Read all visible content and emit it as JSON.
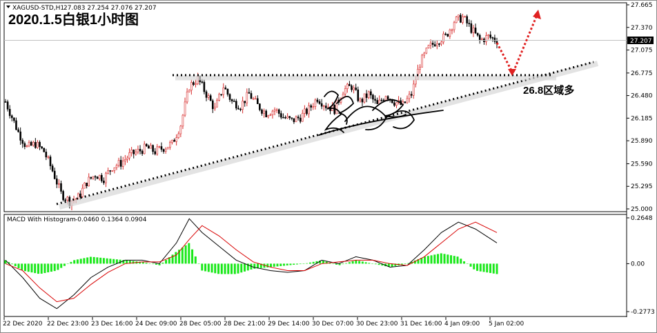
{
  "header": {
    "symbol": "XAGUSD-STD,H1",
    "ohlc": "27.083 27.254 27.076 27.207",
    "title": "2020.1.5白银1小时图"
  },
  "macd_header": {
    "label": "MACD With Histogram",
    "values": "-0.0460 0.1364 0.0904"
  },
  "annotation": "26.8区域多",
  "chart_data": {
    "type": "candlestick",
    "title": "2020.1.5白银1小时图",
    "symbol": "XAGUSD-STD,H1",
    "price_axis": {
      "ticks": [
        "27.665",
        "27.370",
        "27.075",
        "26.775",
        "26.480",
        "26.185",
        "25.890",
        "25.590",
        "25.295",
        "25.000"
      ],
      "range": [
        25.0,
        27.665
      ],
      "current_price": "27.207"
    },
    "macd_axis": {
      "ticks": [
        "0.2648",
        "0.00",
        "-0.2773"
      ],
      "range": [
        -0.2773,
        0.2648
      ]
    },
    "x_ticks": [
      "22 Dec 2020",
      "22 Dec 23:00",
      "23 Dec 16:00",
      "24 Dec 09:00",
      "28 Dec 05:00",
      "28 Dec 21:00",
      "29 Dec 14:00",
      "30 Dec 07:00",
      "30 Dec 23:00",
      "31 Dec 16:00",
      "4 Jan 09:00",
      "5 Jan 02:00"
    ],
    "price_path": [
      [
        0,
        26.4
      ],
      [
        3,
        26.0
      ],
      [
        5,
        25.8
      ],
      [
        7,
        25.85
      ],
      [
        9,
        25.75
      ],
      [
        11,
        25.5
      ],
      [
        13,
        25.2
      ],
      [
        15,
        25.1
      ],
      [
        17,
        25.15
      ],
      [
        19,
        25.35
      ],
      [
        21,
        25.45
      ],
      [
        23,
        25.4
      ],
      [
        25,
        25.55
      ],
      [
        27,
        25.6
      ],
      [
        29,
        25.7
      ],
      [
        31,
        25.75
      ],
      [
        33,
        25.8
      ],
      [
        35,
        25.75
      ],
      [
        37,
        25.8
      ],
      [
        39,
        25.85
      ],
      [
        41,
        26.1
      ],
      [
        43,
        26.6
      ],
      [
        45,
        26.7
      ],
      [
        47,
        26.5
      ],
      [
        49,
        26.3
      ],
      [
        51,
        26.6
      ],
      [
        53,
        26.4
      ],
      [
        55,
        26.35
      ],
      [
        57,
        26.5
      ],
      [
        59,
        26.35
      ],
      [
        61,
        26.25
      ],
      [
        63,
        26.3
      ],
      [
        65,
        26.2
      ],
      [
        67,
        26.15
      ],
      [
        69,
        26.2
      ],
      [
        71,
        26.3
      ],
      [
        73,
        26.45
      ],
      [
        75,
        26.35
      ],
      [
        77,
        26.3
      ],
      [
        79,
        26.55
      ],
      [
        81,
        26.6
      ],
      [
        83,
        26.4
      ],
      [
        85,
        26.5
      ],
      [
        87,
        26.35
      ],
      [
        89,
        26.5
      ],
      [
        91,
        26.4
      ],
      [
        93,
        26.35
      ],
      [
        95,
        26.5
      ],
      [
        97,
        26.9
      ],
      [
        99,
        27.1
      ],
      [
        101,
        27.2
      ],
      [
        103,
        27.25
      ],
      [
        105,
        27.45
      ],
      [
        107,
        27.5
      ],
      [
        109,
        27.35
      ],
      [
        111,
        27.2
      ],
      [
        113,
        27.25
      ],
      [
        115,
        27.2
      ]
    ],
    "macd_line": [
      [
        0,
        0.02
      ],
      [
        4,
        -0.08
      ],
      [
        8,
        -0.2
      ],
      [
        12,
        -0.26
      ],
      [
        16,
        -0.18
      ],
      [
        20,
        -0.08
      ],
      [
        24,
        -0.02
      ],
      [
        28,
        0.02
      ],
      [
        32,
        0.02
      ],
      [
        36,
        0.0
      ],
      [
        40,
        0.12
      ],
      [
        43,
        0.26
      ],
      [
        46,
        0.18
      ],
      [
        50,
        0.1
      ],
      [
        54,
        0.02
      ],
      [
        58,
        -0.02
      ],
      [
        62,
        -0.04
      ],
      [
        66,
        -0.05
      ],
      [
        70,
        -0.04
      ],
      [
        74,
        0.02
      ],
      [
        78,
        0.0
      ],
      [
        82,
        0.04
      ],
      [
        86,
        0.02
      ],
      [
        90,
        -0.02
      ],
      [
        94,
        -0.01
      ],
      [
        98,
        0.08
      ],
      [
        102,
        0.18
      ],
      [
        106,
        0.24
      ],
      [
        110,
        0.2
      ],
      [
        115,
        0.12
      ]
    ],
    "signal_line": [
      [
        0,
        0.0
      ],
      [
        4,
        -0.04
      ],
      [
        8,
        -0.14
      ],
      [
        12,
        -0.22
      ],
      [
        16,
        -0.2
      ],
      [
        20,
        -0.12
      ],
      [
        24,
        -0.05
      ],
      [
        28,
        0.0
      ],
      [
        32,
        0.01
      ],
      [
        36,
        0.01
      ],
      [
        40,
        0.05
      ],
      [
        43,
        0.14
      ],
      [
        46,
        0.22
      ],
      [
        50,
        0.16
      ],
      [
        54,
        0.08
      ],
      [
        58,
        0.01
      ],
      [
        62,
        -0.02
      ],
      [
        66,
        -0.04
      ],
      [
        70,
        -0.04
      ],
      [
        74,
        0.0
      ],
      [
        78,
        0.01
      ],
      [
        82,
        0.02
      ],
      [
        86,
        0.02
      ],
      [
        90,
        0.0
      ],
      [
        94,
        -0.01
      ],
      [
        98,
        0.04
      ],
      [
        102,
        0.12
      ],
      [
        106,
        0.2
      ],
      [
        110,
        0.24
      ],
      [
        115,
        0.18
      ]
    ]
  },
  "colors": {
    "bull_candle": "#d82a2a",
    "bear_candle": "#000000",
    "histogram": "#1ae81a",
    "macd_line": "#000000",
    "signal_line": "#d80000",
    "arrow": "#e02020"
  }
}
